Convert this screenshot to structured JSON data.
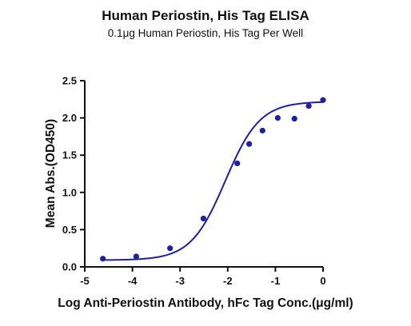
{
  "chart_data": {
    "type": "scatter",
    "title": "Human Periostin, His Tag ELISA",
    "subtitle": "0.1μg Human Periostin, His Tag Per Well",
    "xlabel": "Log Anti-Periostin Antibody, hFc Tag Conc.(μg/ml)",
    "ylabel": "Mean Abs.(OD450)",
    "xlim": [
      -5,
      0
    ],
    "ylim": [
      0,
      2.5
    ],
    "xticks": [
      "-5",
      "-4",
      "-3",
      "-2",
      "-1",
      "0"
    ],
    "yticks": [
      "0.0",
      "0.5",
      "1.0",
      "1.5",
      "2.0",
      "2.5"
    ],
    "points": {
      "x": [
        -4.62,
        -3.92,
        -3.21,
        -2.51,
        -1.8,
        -1.55,
        -1.27,
        -0.95,
        -0.6,
        -0.3,
        0.0
      ],
      "y": [
        0.11,
        0.14,
        0.25,
        0.65,
        1.39,
        1.65,
        1.83,
        2.0,
        1.99,
        2.16,
        2.24
      ]
    },
    "fit": {
      "type": "4PL",
      "bottom": 0.09,
      "top": 2.22,
      "logEC50": -2.05,
      "hill": 1.2
    },
    "colors": {
      "series": "#1f1fa0",
      "axis": "#111111"
    },
    "grid": false,
    "legend": "none"
  }
}
